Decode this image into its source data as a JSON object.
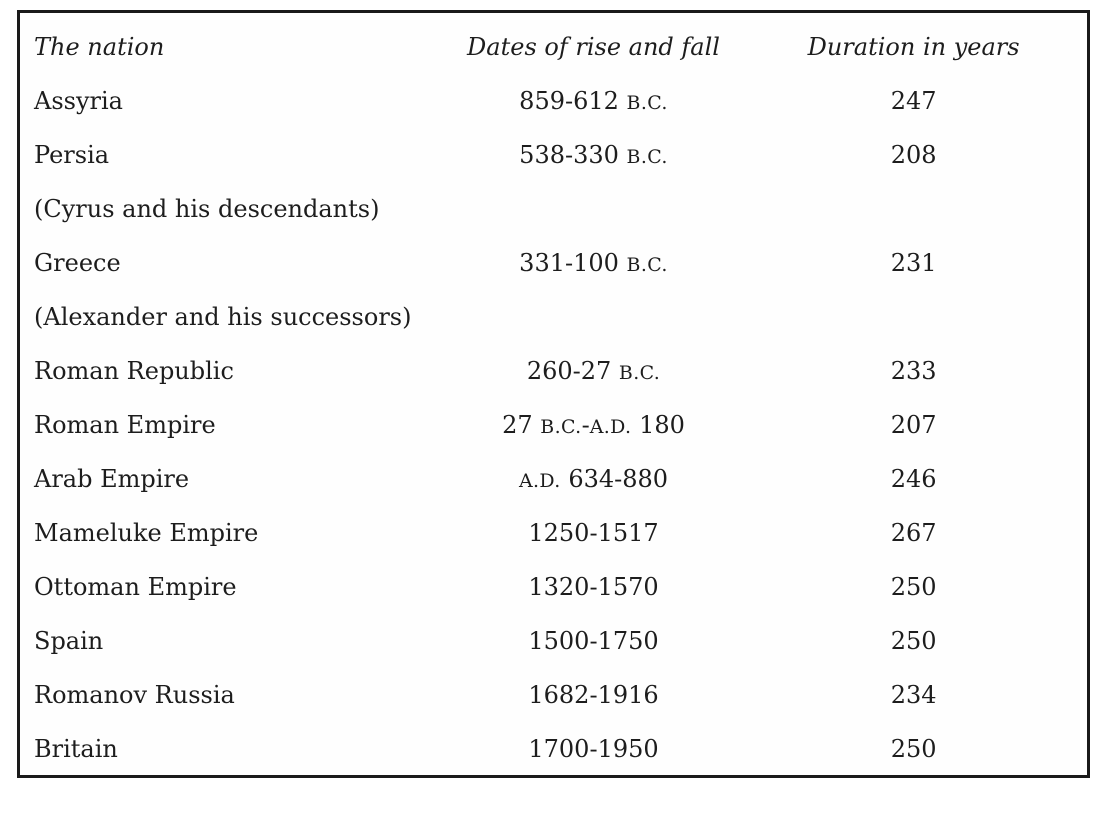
{
  "page": {
    "background_color": "#ffffff",
    "text_color": "#1d1d1d",
    "table_border_color": "#1a1a1a"
  },
  "chart_data": {
    "type": "table",
    "title": "",
    "columns": [
      "The nation",
      "Dates of rise and fall",
      "Duration in years"
    ],
    "rows": [
      [
        "Assyria",
        "859-612 B.C.",
        "247"
      ],
      [
        "Persia",
        "538-330 B.C.",
        "208"
      ],
      [
        "(Cyrus and his descendants)",
        "",
        ""
      ],
      [
        "Greece",
        "331-100 B.C.",
        "231"
      ],
      [
        "(Alexander and his successors)",
        "",
        ""
      ],
      [
        "Roman Republic",
        "260-27 B.C.",
        "233"
      ],
      [
        "Roman Empire",
        "27 B.C.-A.D. 180",
        "207"
      ],
      [
        "Arab Empire",
        "A.D. 634-880",
        "246"
      ],
      [
        "Mameluke Empire",
        "1250-1517",
        "267"
      ],
      [
        "Ottoman Empire",
        "1320-1570",
        "250"
      ],
      [
        "Spain",
        "1500-1750",
        "250"
      ],
      [
        "Romanov Russia",
        "1682-1916",
        "234"
      ],
      [
        "Britain",
        "1700-1950",
        "250"
      ]
    ]
  }
}
